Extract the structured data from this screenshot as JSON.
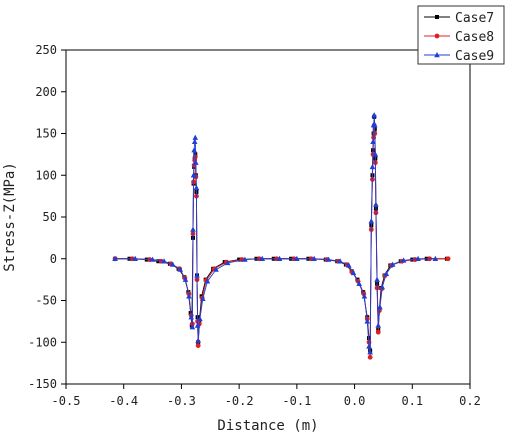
{
  "chart_data": {
    "type": "scatter",
    "xlabel": "Distance (m)",
    "ylabel": "Stress-Z(MPa)",
    "xlim": [
      -0.5,
      0.2
    ],
    "ylim": [
      -150,
      250
    ],
    "xticks": [
      -0.5,
      -0.4,
      -0.3,
      -0.2,
      -0.1,
      0.0,
      0.1,
      0.2
    ],
    "yticks": [
      -150,
      -100,
      -50,
      0,
      50,
      100,
      150,
      200,
      250
    ],
    "xtick_labels": [
      "-0.5",
      "-0.4",
      "-0.3",
      "-0.2",
      "-0.1",
      "0.0",
      "0.1",
      "0.2"
    ],
    "ytick_labels": [
      "-150",
      "-100",
      "-50",
      "0",
      "50",
      "100",
      "150",
      "200",
      "250"
    ],
    "grid": false,
    "legend_position": "top-right",
    "series": [
      {
        "name": "Case7",
        "color": "#000000",
        "marker": "square",
        "points": [
          [
            -0.415,
            0
          ],
          [
            -0.39,
            0
          ],
          [
            -0.36,
            -1
          ],
          [
            -0.34,
            -3
          ],
          [
            -0.32,
            -6
          ],
          [
            -0.305,
            -12
          ],
          [
            -0.295,
            -22
          ],
          [
            -0.288,
            -40
          ],
          [
            -0.284,
            -65
          ],
          [
            -0.282,
            -80
          ],
          [
            -0.28,
            25
          ],
          [
            -0.279,
            90
          ],
          [
            -0.278,
            110
          ],
          [
            -0.277,
            120
          ],
          [
            -0.276,
            125
          ],
          [
            -0.275,
            100
          ],
          [
            -0.274,
            80
          ],
          [
            -0.273,
            -20
          ],
          [
            -0.272,
            -70
          ],
          [
            -0.271,
            -100
          ],
          [
            -0.269,
            -75
          ],
          [
            -0.265,
            -45
          ],
          [
            -0.258,
            -25
          ],
          [
            -0.245,
            -12
          ],
          [
            -0.225,
            -4
          ],
          [
            -0.2,
            -1
          ],
          [
            -0.17,
            0
          ],
          [
            -0.14,
            0
          ],
          [
            -0.11,
            0
          ],
          [
            -0.08,
            0
          ],
          [
            -0.05,
            -1
          ],
          [
            -0.03,
            -3
          ],
          [
            -0.015,
            -7
          ],
          [
            -0.005,
            -15
          ],
          [
            0.005,
            -25
          ],
          [
            0.015,
            -40
          ],
          [
            0.022,
            -70
          ],
          [
            0.025,
            -95
          ],
          [
            0.027,
            -110
          ],
          [
            0.029,
            40
          ],
          [
            0.031,
            100
          ],
          [
            0.032,
            130
          ],
          [
            0.033,
            150
          ],
          [
            0.034,
            170
          ],
          [
            0.035,
            155
          ],
          [
            0.036,
            120
          ],
          [
            0.037,
            60
          ],
          [
            0.039,
            -30
          ],
          [
            0.041,
            -85
          ],
          [
            0.043,
            -60
          ],
          [
            0.046,
            -35
          ],
          [
            0.052,
            -20
          ],
          [
            0.062,
            -8
          ],
          [
            0.08,
            -3
          ],
          [
            0.1,
            -1
          ],
          [
            0.125,
            0
          ],
          [
            0.16,
            0
          ]
        ]
      },
      {
        "name": "Case8",
        "color": "#e02020",
        "marker": "circle",
        "points": [
          [
            -0.415,
            0
          ],
          [
            -0.385,
            0
          ],
          [
            -0.355,
            -1
          ],
          [
            -0.335,
            -3
          ],
          [
            -0.318,
            -6
          ],
          [
            -0.303,
            -12
          ],
          [
            -0.294,
            -23
          ],
          [
            -0.287,
            -42
          ],
          [
            -0.283,
            -68
          ],
          [
            -0.281,
            -78
          ],
          [
            -0.28,
            30
          ],
          [
            -0.279,
            92
          ],
          [
            -0.278,
            112
          ],
          [
            -0.277,
            118
          ],
          [
            -0.276,
            122
          ],
          [
            -0.275,
            98
          ],
          [
            -0.274,
            75
          ],
          [
            -0.273,
            -25
          ],
          [
            -0.272,
            -75
          ],
          [
            -0.271,
            -104
          ],
          [
            -0.269,
            -78
          ],
          [
            -0.264,
            -47
          ],
          [
            -0.257,
            -26
          ],
          [
            -0.243,
            -12
          ],
          [
            -0.222,
            -4
          ],
          [
            -0.195,
            -1
          ],
          [
            -0.165,
            0
          ],
          [
            -0.135,
            0
          ],
          [
            -0.105,
            0
          ],
          [
            -0.075,
            0
          ],
          [
            -0.048,
            -1
          ],
          [
            -0.028,
            -3
          ],
          [
            -0.013,
            -7
          ],
          [
            -0.004,
            -16
          ],
          [
            0.006,
            -27
          ],
          [
            0.016,
            -42
          ],
          [
            0.022,
            -72
          ],
          [
            0.025,
            -100
          ],
          [
            0.027,
            -118
          ],
          [
            0.029,
            35
          ],
          [
            0.031,
            95
          ],
          [
            0.032,
            125
          ],
          [
            0.033,
            145
          ],
          [
            0.034,
            160
          ],
          [
            0.035,
            150
          ],
          [
            0.036,
            115
          ],
          [
            0.037,
            55
          ],
          [
            0.039,
            -35
          ],
          [
            0.041,
            -88
          ],
          [
            0.043,
            -62
          ],
          [
            0.047,
            -36
          ],
          [
            0.053,
            -20
          ],
          [
            0.064,
            -8
          ],
          [
            0.082,
            -3
          ],
          [
            0.105,
            -1
          ],
          [
            0.13,
            0
          ],
          [
            0.162,
            0
          ]
        ]
      },
      {
        "name": "Case9",
        "color": "#1f3fd6",
        "marker": "triangle",
        "points": [
          [
            -0.415,
            0
          ],
          [
            -0.38,
            0
          ],
          [
            -0.35,
            -1
          ],
          [
            -0.33,
            -3
          ],
          [
            -0.315,
            -7
          ],
          [
            -0.302,
            -13
          ],
          [
            -0.293,
            -25
          ],
          [
            -0.287,
            -45
          ],
          [
            -0.283,
            -70
          ],
          [
            -0.281,
            -82
          ],
          [
            -0.28,
            35
          ],
          [
            -0.279,
            100
          ],
          [
            -0.278,
            130
          ],
          [
            -0.277,
            140
          ],
          [
            -0.276,
            145
          ],
          [
            -0.275,
            115
          ],
          [
            -0.274,
            85
          ],
          [
            -0.273,
            -20
          ],
          [
            -0.272,
            -80
          ],
          [
            -0.271,
            -98
          ],
          [
            -0.268,
            -72
          ],
          [
            -0.263,
            -48
          ],
          [
            -0.255,
            -27
          ],
          [
            -0.24,
            -13
          ],
          [
            -0.22,
            -5
          ],
          [
            -0.19,
            -1
          ],
          [
            -0.16,
            0
          ],
          [
            -0.13,
            0
          ],
          [
            -0.1,
            0
          ],
          [
            -0.07,
            0
          ],
          [
            -0.045,
            -1
          ],
          [
            -0.025,
            -3
          ],
          [
            -0.01,
            -8
          ],
          [
            -0.002,
            -17
          ],
          [
            0.008,
            -30
          ],
          [
            0.017,
            -45
          ],
          [
            0.022,
            -75
          ],
          [
            0.025,
            -105
          ],
          [
            0.027,
            -112
          ],
          [
            0.029,
            45
          ],
          [
            0.031,
            110
          ],
          [
            0.032,
            140
          ],
          [
            0.033,
            160
          ],
          [
            0.034,
            172
          ],
          [
            0.035,
            160
          ],
          [
            0.036,
            125
          ],
          [
            0.037,
            65
          ],
          [
            0.039,
            -25
          ],
          [
            0.041,
            -80
          ],
          [
            0.044,
            -58
          ],
          [
            0.048,
            -34
          ],
          [
            0.055,
            -18
          ],
          [
            0.066,
            -7
          ],
          [
            0.085,
            -2
          ],
          [
            0.11,
            0
          ],
          [
            0.14,
            0
          ]
        ]
      }
    ]
  }
}
